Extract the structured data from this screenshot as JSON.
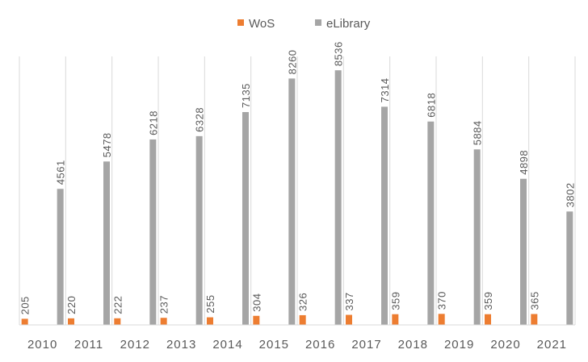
{
  "chart_data": {
    "type": "bar",
    "title": "",
    "xlabel": "",
    "ylabel": "",
    "categories": [
      "2010",
      "2011",
      "2012",
      "2013",
      "2014",
      "2015",
      "2016",
      "2017",
      "2018",
      "2019",
      "2020",
      "2021"
    ],
    "series": [
      {
        "name": "WoS",
        "color": "#ED7D31",
        "values": [
          205,
          220,
          222,
          237,
          255,
          304,
          326,
          337,
          359,
          370,
          359,
          365
        ]
      },
      {
        "name": "eLibrary",
        "color": "#A5A5A5",
        "values": [
          4561,
          5478,
          6218,
          6328,
          7135,
          8260,
          8536,
          7314,
          6818,
          5884,
          4898,
          3802
        ]
      }
    ],
    "ylim": [
      0,
      9000
    ],
    "grid": "vertical separators",
    "legend": "top-center",
    "data_labels": true
  }
}
